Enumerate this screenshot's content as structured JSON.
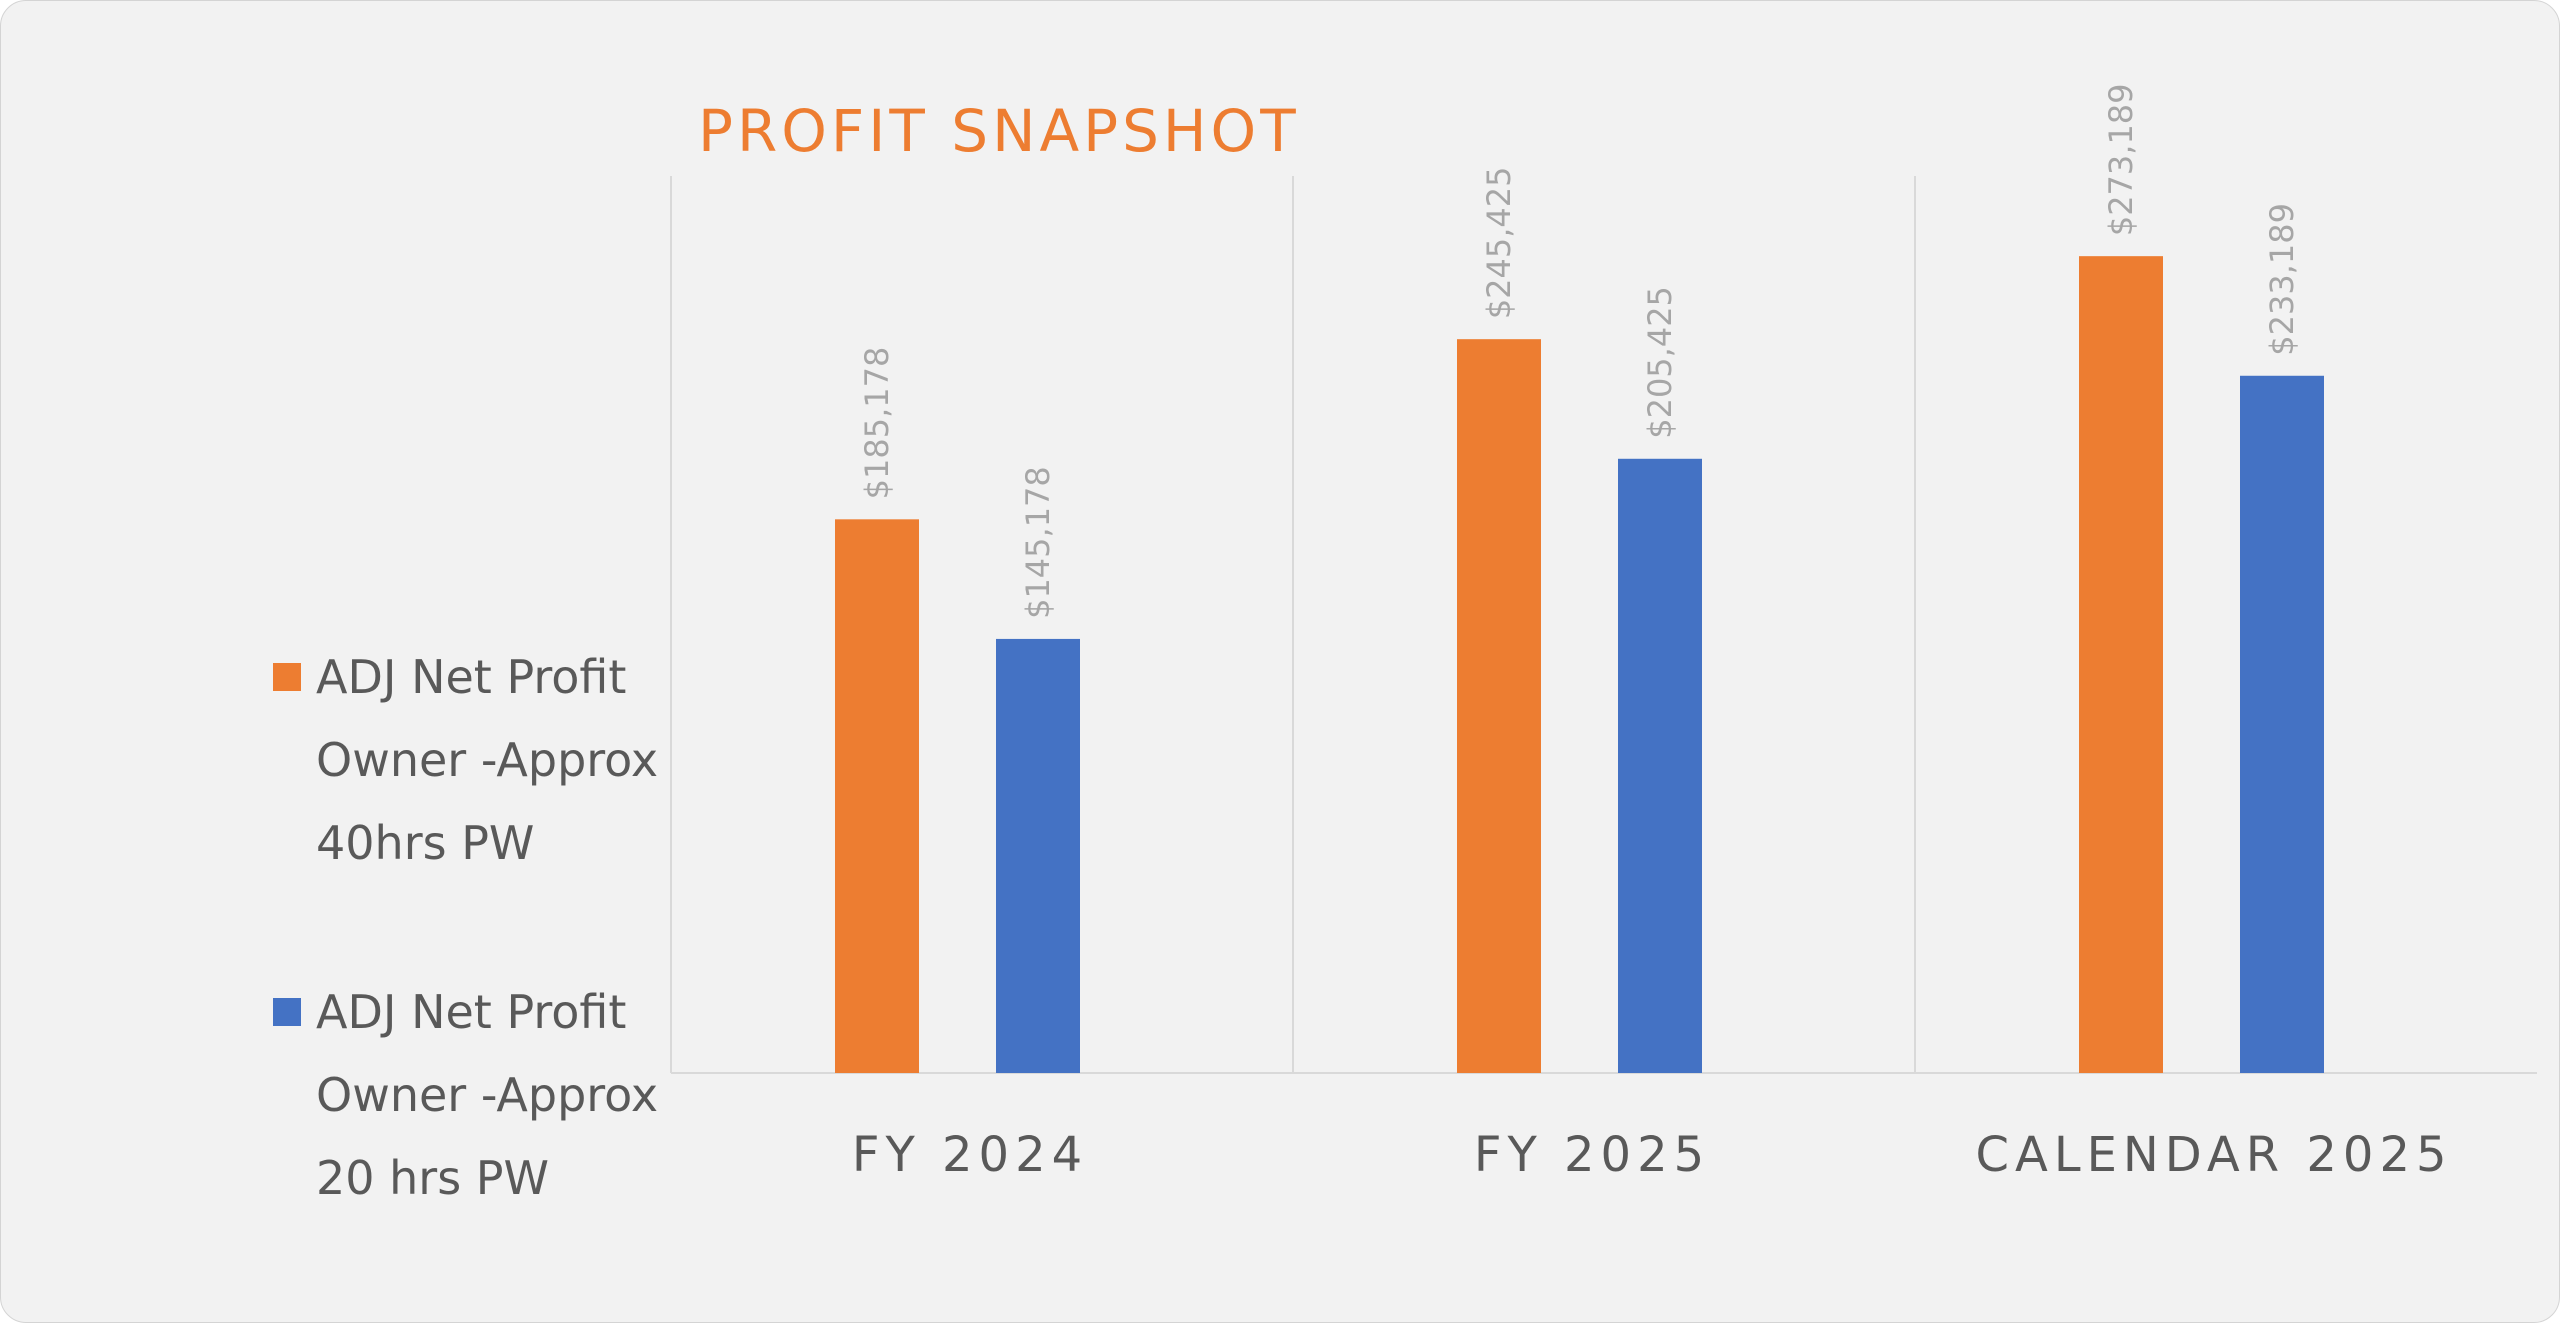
{
  "chart_data": {
    "type": "bar",
    "title": "PROFIT SNAPSHOT",
    "categories": [
      "FY 2024",
      "FY 2025",
      "CALENDAR 2025"
    ],
    "series": [
      {
        "name": "ADJ Net Profit Owner -Approx 40hrs PW",
        "legend_lines": [
          "ADJ Net Profit",
          "Owner -Approx",
          "40hrs PW"
        ],
        "color": "#ed7d31",
        "values": [
          185178,
          245425,
          273189
        ],
        "labels": [
          "$185,178",
          "$245,425",
          "$273,189"
        ]
      },
      {
        "name": "ADJ Net Profit Owner -Approx 20 hrs PW",
        "legend_lines": [
          "ADJ Net Profit",
          "Owner -Approx",
          "20 hrs PW"
        ],
        "color": "#4472c4",
        "values": [
          145178,
          205425,
          233189
        ],
        "labels": [
          "$145,178",
          "$205,425",
          "$233,189"
        ]
      }
    ],
    "ylim": [
      0,
      300000
    ],
    "xlabel": "",
    "ylabel": "",
    "legend_position": "left",
    "grid": "vertical category separators",
    "colors": {
      "title": "#ed7d31",
      "gridline": "#d9d9d9",
      "category_text": "#595959",
      "data_label_text": "#a6a6a6",
      "background": "#f2f2f2"
    }
  }
}
